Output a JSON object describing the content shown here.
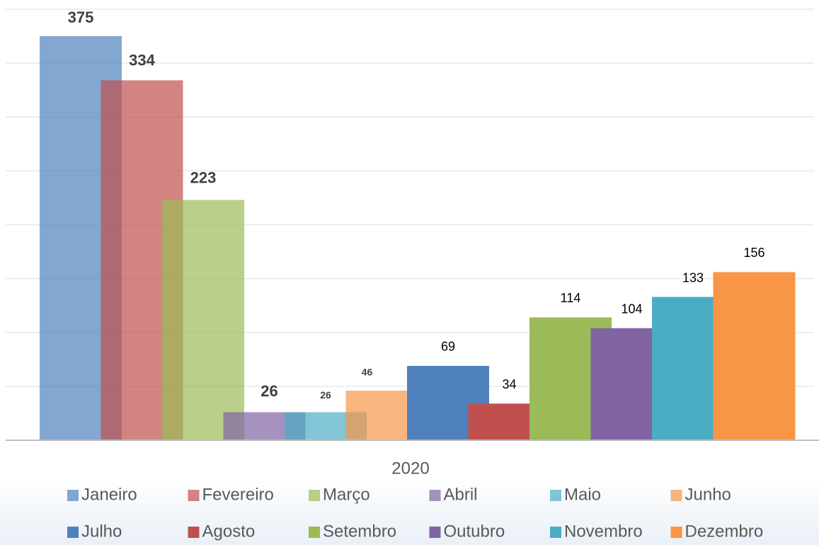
{
  "chart_data": {
    "type": "bar",
    "categories": [
      "2020"
    ],
    "series": [
      {
        "name": "Janeiro",
        "color": "#4F81BD",
        "values": [
          375
        ]
      },
      {
        "name": "Fevereiro",
        "color": "#C0504D",
        "values": [
          334
        ]
      },
      {
        "name": "Março",
        "color": "#9BBB59",
        "values": [
          223
        ]
      },
      {
        "name": "Abril",
        "color": "#8064A2",
        "values": [
          26
        ]
      },
      {
        "name": "Maio",
        "color": "#4BACC6",
        "values": [
          26
        ]
      },
      {
        "name": "Junho",
        "color": "#F79646",
        "values": [
          46
        ]
      },
      {
        "name": "Julho",
        "color": "#4F81BD",
        "values": [
          69
        ]
      },
      {
        "name": "Agosto",
        "color": "#C0504D",
        "values": [
          34
        ]
      },
      {
        "name": "Setembro",
        "color": "#9BBB59",
        "values": [
          114
        ]
      },
      {
        "name": "Outubro",
        "color": "#8064A2",
        "values": [
          104
        ]
      },
      {
        "name": "Novembro",
        "color": "#4BACC6",
        "values": [
          133
        ]
      },
      {
        "name": "Dezembro",
        "color": "#F79646",
        "values": [
          156
        ]
      }
    ],
    "ylim": [
      0,
      400
    ],
    "yticks": [
      0,
      50,
      100,
      150,
      200,
      250,
      300,
      350,
      400
    ],
    "grid": true
  }
}
